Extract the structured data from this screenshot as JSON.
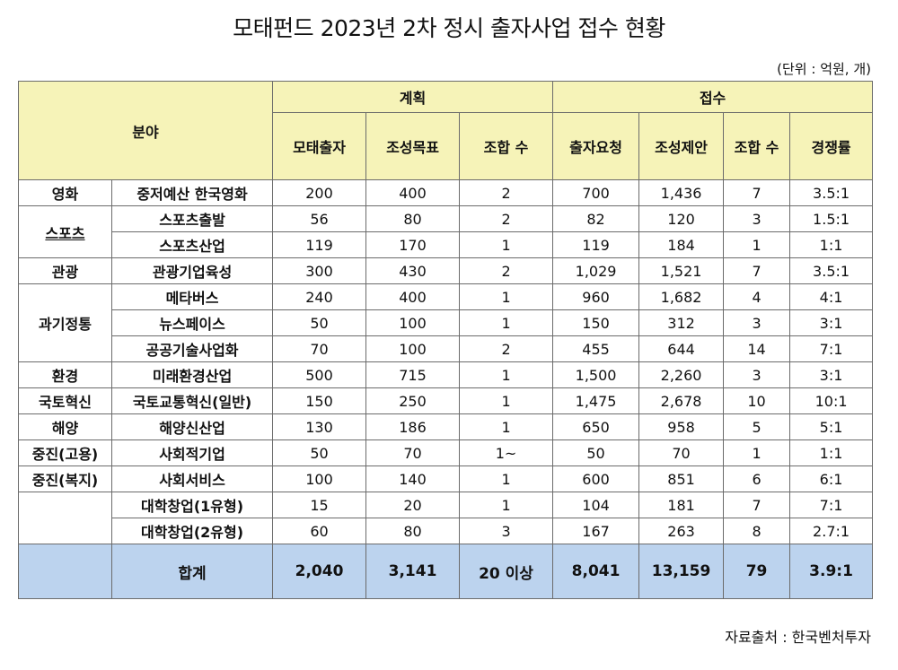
{
  "title": "모태펀드 2023년 2차 정시 출자사업 접수 현황",
  "unit_note": "(단위 : 억원, 개)",
  "source": "자료출처 : 한국벤처투자",
  "header": {
    "field": "분야",
    "plan": "계획",
    "receipt": "접수",
    "columns": [
      "모태출자",
      "조성목표",
      "조합 수",
      "출자요청",
      "조성제안",
      "조합 수",
      "경쟁률"
    ]
  },
  "rows": [
    {
      "cat": "영화",
      "sub": "중저예산 한국영화",
      "v": [
        "200",
        "400",
        "2",
        "700",
        "1,436",
        "7",
        "3.5:1"
      ]
    },
    {
      "cat": "스포츠",
      "sub": "스포츠출발",
      "v": [
        "56",
        "80",
        "2",
        "82",
        "120",
        "3",
        "1.5:1"
      ]
    },
    {
      "cat": "",
      "sub": "스포츠산업",
      "v": [
        "119",
        "170",
        "1",
        "119",
        "184",
        "1",
        "1:1"
      ]
    },
    {
      "cat": "관광",
      "sub": "관광기업육성",
      "v": [
        "300",
        "430",
        "2",
        "1,029",
        "1,521",
        "7",
        "3.5:1"
      ]
    },
    {
      "cat": "과기정통",
      "sub": "메타버스",
      "v": [
        "240",
        "400",
        "1",
        "960",
        "1,682",
        "4",
        "4:1"
      ]
    },
    {
      "cat": "",
      "sub": "뉴스페이스",
      "v": [
        "50",
        "100",
        "1",
        "150",
        "312",
        "3",
        "3:1"
      ]
    },
    {
      "cat": "",
      "sub": "공공기술사업화",
      "v": [
        "70",
        "100",
        "2",
        "455",
        "644",
        "14",
        "7:1"
      ]
    },
    {
      "cat": "환경",
      "sub": "미래환경산업",
      "v": [
        "500",
        "715",
        "1",
        "1,500",
        "2,260",
        "3",
        "3:1"
      ]
    },
    {
      "cat": "국토혁신",
      "sub": "국토교통혁신(일반)",
      "v": [
        "150",
        "250",
        "1",
        "1,475",
        "2,678",
        "10",
        "10:1"
      ]
    },
    {
      "cat": "해양",
      "sub": "해양신산업",
      "v": [
        "130",
        "186",
        "1",
        "650",
        "958",
        "5",
        "5:1"
      ]
    },
    {
      "cat": "중진(고용)",
      "sub": "사회적기업",
      "v": [
        "50",
        "70",
        "1~",
        "50",
        "70",
        "1",
        "1:1"
      ]
    },
    {
      "cat": "중진(복지)",
      "sub": "사회서비스",
      "v": [
        "100",
        "140",
        "1",
        "600",
        "851",
        "6",
        "6:1"
      ]
    },
    {
      "cat": "",
      "sub": "대학창업(1유형)",
      "v": [
        "15",
        "20",
        "1",
        "104",
        "181",
        "7",
        "7:1"
      ]
    },
    {
      "cat": "",
      "sub": "대학창업(2유형)",
      "v": [
        "60",
        "80",
        "3",
        "167",
        "263",
        "8",
        "2.7:1"
      ]
    }
  ],
  "total": {
    "label": "합계",
    "v": [
      "2,040",
      "3,141",
      "20 이상",
      "8,041",
      "13,159",
      "79",
      "3.9:1"
    ]
  }
}
